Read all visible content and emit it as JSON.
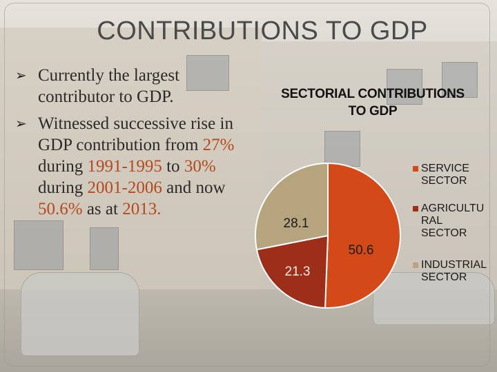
{
  "slide": {
    "title": "CONTRIBUTIONS TO GDP",
    "bullets": [
      {
        "parts": [
          {
            "text": "Currently the largest contributor to GDP.",
            "highlight": false
          }
        ]
      },
      {
        "parts": [
          {
            "text": "Witnessed successive rise in GDP contribution from ",
            "highlight": false
          },
          {
            "text": "27%",
            "highlight": true
          },
          {
            "text": " during ",
            "highlight": false
          },
          {
            "text": "1991-1995",
            "highlight": true
          },
          {
            "text": " to ",
            "highlight": false
          },
          {
            "text": "30%",
            "highlight": true
          },
          {
            "text": " during ",
            "highlight": false
          },
          {
            "text": "2001-2006",
            "highlight": true
          },
          {
            "text": " and now ",
            "highlight": false
          },
          {
            "text": "50.6%",
            "highlight": true
          },
          {
            "text": " as at ",
            "highlight": false
          },
          {
            "text": "2013.",
            "highlight": true
          }
        ]
      }
    ],
    "highlight_color": "#b5481c"
  },
  "chart_data": {
    "type": "pie",
    "title": "SECTORIAL CONTRIBUTIONS TO GDP",
    "categories": [
      "SERVICE SECTOR",
      "AGRICULTURAL SECTOR",
      "INDUSTRIAL SECTOR"
    ],
    "values": [
      50.6,
      21.3,
      28.1
    ],
    "data_labels": [
      "50.6",
      "21.3",
      "28.1"
    ],
    "colors": [
      "#d34a18",
      "#9c2e1a",
      "#b6a47e"
    ],
    "legend_labels": [
      "SERVICE\nSECTOR",
      "AGRICULTU\nRAL\nSECTOR",
      "INDUSTRIAL\nSECTOR"
    ],
    "legend_position": "right",
    "start": "12 o'clock, clockwise"
  }
}
